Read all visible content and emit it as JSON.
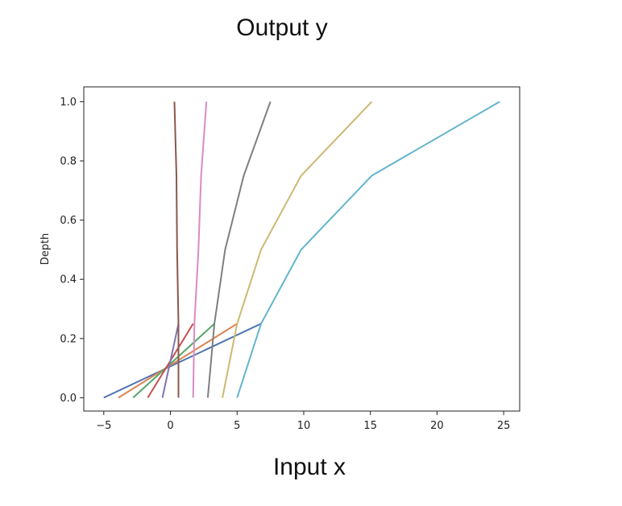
{
  "captions": {
    "top": "Output y",
    "bottom": "Input x"
  },
  "chart_data": {
    "type": "line",
    "title": "",
    "xlabel": "",
    "ylabel": "Depth",
    "xlim": [
      -6.5,
      26.2
    ],
    "ylim": [
      -0.045,
      1.05
    ],
    "xticks": [
      -5,
      0,
      5,
      10,
      15,
      20,
      25
    ],
    "yticks": [
      0.0,
      0.2,
      0.4,
      0.6,
      0.8,
      1.0
    ],
    "grid": false,
    "legend": "none",
    "series": [
      {
        "color": "#4c72b0",
        "points": [
          [
            -5,
            0
          ],
          [
            6.8,
            0.25
          ]
        ]
      },
      {
        "color": "#dd8452",
        "points": [
          [
            -3.9,
            0
          ],
          [
            5.0,
            0.25
          ]
        ]
      },
      {
        "color": "#55a868",
        "points": [
          [
            -2.8,
            0
          ],
          [
            3.3,
            0.25
          ]
        ]
      },
      {
        "color": "#c44e52",
        "points": [
          [
            -1.7,
            0
          ],
          [
            1.7,
            0.25
          ]
        ]
      },
      {
        "color": "#8172b3",
        "points": [
          [
            -0.6,
            0
          ],
          [
            0.6,
            0.25
          ]
        ]
      },
      {
        "color": "#8c564b",
        "points": [
          [
            0.6,
            0
          ],
          [
            0.6,
            0.25
          ],
          [
            0.5,
            0.5
          ],
          [
            0.45,
            0.75
          ],
          [
            0.3,
            1.0
          ]
        ]
      },
      {
        "color": "#da8bc3",
        "points": [
          [
            1.7,
            0
          ],
          [
            1.8,
            0.25
          ],
          [
            2.1,
            0.5
          ],
          [
            2.3,
            0.75
          ],
          [
            2.7,
            1.0
          ]
        ]
      },
      {
        "color": "#7f7f7f",
        "points": [
          [
            2.8,
            0
          ],
          [
            3.3,
            0.25
          ],
          [
            4.1,
            0.5
          ],
          [
            5.5,
            0.75
          ],
          [
            7.5,
            1.0
          ]
        ]
      },
      {
        "color": "#ccb974",
        "points": [
          [
            3.9,
            0
          ],
          [
            5.0,
            0.25
          ],
          [
            6.8,
            0.5
          ],
          [
            9.8,
            0.75
          ],
          [
            15.1,
            1.0
          ]
        ]
      },
      {
        "color": "#64b5cd",
        "points": [
          [
            5.0,
            0
          ],
          [
            6.8,
            0.25
          ],
          [
            9.8,
            0.5
          ],
          [
            15.1,
            0.75
          ],
          [
            24.7,
            1.0
          ]
        ]
      }
    ]
  }
}
